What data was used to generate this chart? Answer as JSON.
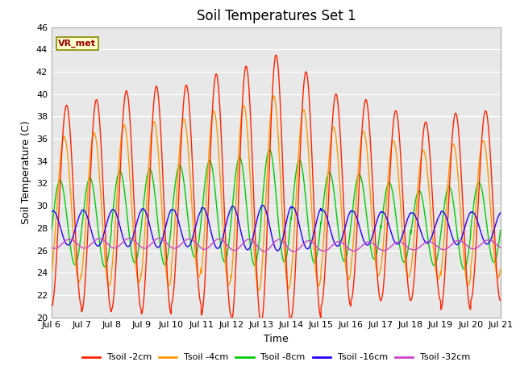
{
  "title": "Soil Temperatures Set 1",
  "xlabel": "Time",
  "ylabel": "Soil Temperature (C)",
  "ylim": [
    20,
    46
  ],
  "xlim": [
    0,
    15
  ],
  "xtick_labels": [
    "Jul 6",
    "Jul 7",
    "Jul 8",
    "Jul 9",
    "Jul 10",
    "Jul 11",
    "Jul 12",
    "Jul 13",
    "Jul 14",
    "Jul 15",
    "Jul 16",
    "Jul 17",
    "Jul 18",
    "Jul 19",
    "Jul 20",
    "Jul 21"
  ],
  "legend_labels": [
    "Tsoil -2cm",
    "Tsoil -4cm",
    "Tsoil -8cm",
    "Tsoil -16cm",
    "Tsoil -32cm"
  ],
  "line_colors": [
    "#ff2200",
    "#ff9900",
    "#00cc00",
    "#2200ff",
    "#cc44cc"
  ],
  "annotation_text": "VR_met",
  "bg_color": "#e8e8e8",
  "title_fontsize": 12,
  "label_fontsize": 9,
  "tick_fontsize": 8,
  "ytick_step": 2,
  "figsize": [
    6.4,
    4.8
  ],
  "dpi": 100
}
